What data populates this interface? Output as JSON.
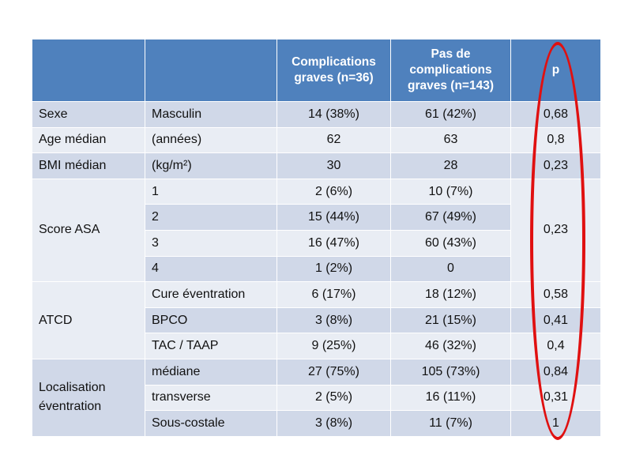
{
  "header": {
    "col1": "",
    "col2": "",
    "col3": "Complications graves (n=36)",
    "col4": "Pas de complications graves (n=143)",
    "col5": "p"
  },
  "rows": {
    "sexe": {
      "label": "Sexe",
      "sub": "Masculin",
      "a": "14 (38%)",
      "b": "61 (42%)",
      "p": "0,68"
    },
    "age": {
      "label": "Age médian",
      "sub": "(années)",
      "a": "62",
      "b": "63",
      "p": "0,8"
    },
    "bmi": {
      "label": "BMI médian",
      "sub": "(kg/m²)",
      "a": "30",
      "b": "28",
      "p": "0,23"
    },
    "asa": {
      "label": "Score ASA",
      "p": "0,23",
      "items": [
        {
          "sub": "1",
          "a": "2 (6%)",
          "b": "10 (7%)"
        },
        {
          "sub": "2",
          "a": "15 (44%)",
          "b": "67 (49%)"
        },
        {
          "sub": "3",
          "a": "16 (47%)",
          "b": "60 (43%)"
        },
        {
          "sub": "4",
          "a": "1 (2%)",
          "b": "0"
        }
      ]
    },
    "atcd": {
      "label": "ATCD",
      "items": [
        {
          "sub": "Cure éventration",
          "a": "6 (17%)",
          "b": "18 (12%)",
          "p": "0,58"
        },
        {
          "sub": "BPCO",
          "a": "3 (8%)",
          "b": "21 (15%)",
          "p": "0,41"
        },
        {
          "sub": "TAC / TAAP",
          "a": "9 (25%)",
          "b": "46 (32%)",
          "p": "0,4"
        }
      ]
    },
    "loc": {
      "label": "Localisation éventration",
      "items": [
        {
          "sub": "médiane",
          "a": "27 (75%)",
          "b": "105 (73%)",
          "p": "0,84"
        },
        {
          "sub": "transverse",
          "a": "2 (5%)",
          "b": "16 (11%)",
          "p": "0,31"
        },
        {
          "sub": "Sous-costale",
          "a": "3 (8%)",
          "b": "11 (7%)",
          "p": "1"
        }
      ]
    }
  },
  "colors": {
    "header_bg": "#4f81bd",
    "row_dark": "#d0d8e8",
    "row_light": "#e9edf4",
    "highlight": "#e01010"
  }
}
